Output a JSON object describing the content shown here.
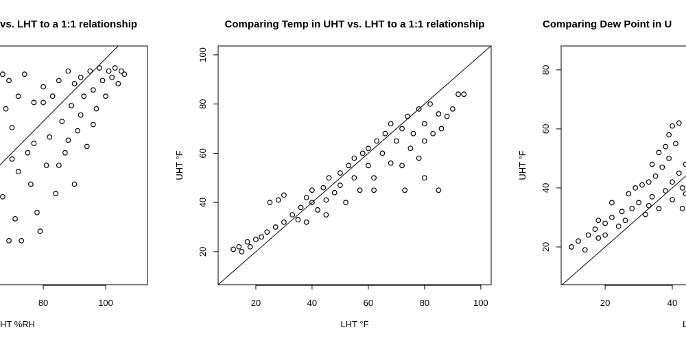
{
  "chart_data": [
    {
      "type": "scatter",
      "title": "vs. LHT to a 1:1 relationship",
      "xlabel": "HT %RH",
      "color": "#000000",
      "identity_line": true,
      "xlim": [
        25.9,
        113.4
      ],
      "ylim": [
        28,
        104
      ],
      "xticks": [
        80,
        100
      ],
      "x": [
        67,
        68,
        69,
        70,
        71,
        72,
        72,
        73,
        74,
        75,
        76,
        77,
        78,
        79,
        80,
        81,
        82,
        83,
        84,
        85,
        86,
        87,
        88,
        89,
        90,
        90,
        91,
        92,
        93,
        94,
        95,
        96,
        97,
        98,
        99,
        100,
        101,
        102,
        103,
        104,
        105,
        106,
        92,
        96,
        88,
        85,
        80,
        77,
        70,
        67,
        69
      ],
      "y": [
        56,
        84,
        93,
        78,
        49,
        88,
        64,
        42,
        95,
        70,
        60,
        86,
        51,
        45,
        91,
        66,
        75,
        88,
        57,
        93,
        80,
        70,
        96,
        85,
        60,
        92,
        77,
        94,
        88,
        72,
        96,
        90,
        84,
        97,
        93,
        88,
        96,
        94,
        97,
        92,
        96,
        95,
        82,
        79,
        74,
        66,
        86,
        73,
        68,
        95,
        42
      ]
    },
    {
      "type": "scatter",
      "title": "Comparing Temp in UHT vs. LHT to a 1:1 relationship",
      "xlabel": "LHT °F",
      "ylabel": "UHT °F",
      "color": "#000000",
      "identity_line": true,
      "xlim": [
        6.6,
        103.7
      ],
      "ylim": [
        6.6,
        103.6
      ],
      "xticks": [
        20,
        40,
        60,
        80,
        100
      ],
      "yticks": [
        20,
        40,
        60,
        80,
        100
      ],
      "x": [
        12,
        14,
        15,
        17,
        18,
        20,
        22,
        24,
        25,
        28,
        30,
        27,
        30,
        33,
        35,
        36,
        38,
        40,
        40,
        42,
        44,
        45,
        46,
        48,
        50,
        50,
        52,
        53,
        55,
        55,
        57,
        58,
        60,
        60,
        62,
        63,
        65,
        66,
        68,
        68,
        70,
        72,
        72,
        74,
        75,
        76,
        78,
        78,
        80,
        80,
        82,
        83,
        85,
        86,
        88,
        90,
        92,
        94,
        85,
        80,
        73,
        62,
        45,
        38
      ],
      "y": [
        21,
        22,
        20,
        24,
        22,
        25,
        26,
        28,
        40,
        41,
        43,
        30,
        32,
        35,
        33,
        38,
        42,
        40,
        45,
        37,
        46,
        41,
        50,
        44,
        52,
        47,
        40,
        55,
        50,
        58,
        45,
        60,
        62,
        55,
        50,
        65,
        60,
        68,
        56,
        72,
        65,
        70,
        55,
        75,
        62,
        68,
        78,
        58,
        72,
        65,
        80,
        68,
        76,
        70,
        75,
        78,
        84,
        84,
        45,
        50,
        45,
        45,
        35,
        32
      ]
    },
    {
      "type": "scatter",
      "title": "Comparing Dew Point in U",
      "xlabel": "L",
      "ylabel": "UHT °F",
      "color": "#000000",
      "identity_line": true,
      "xlim": [
        6.9,
        88.2
      ],
      "ylim": [
        7.2,
        88.1
      ],
      "xticks": [
        20,
        40
      ],
      "yticks": [
        20,
        40,
        60,
        80
      ],
      "x": [
        10,
        12,
        14,
        15,
        17,
        18,
        20,
        22,
        24,
        25,
        26,
        28,
        29,
        30,
        31,
        32,
        33,
        34,
        35,
        36,
        37,
        38,
        39,
        40,
        40,
        41,
        42,
        42,
        43,
        44,
        44,
        45,
        46,
        46,
        36,
        34,
        39,
        40,
        38,
        22,
        18,
        27,
        33,
        43,
        20
      ],
      "y": [
        20,
        22,
        19,
        24,
        26,
        23,
        28,
        30,
        27,
        32,
        29,
        33,
        40,
        35,
        41,
        31,
        42,
        37,
        44,
        33,
        47,
        39,
        50,
        42,
        36,
        55,
        45,
        62,
        40,
        48,
        38,
        46,
        50,
        43,
        52,
        48,
        58,
        61,
        54,
        35,
        29,
        38,
        34,
        33,
        24
      ]
    }
  ]
}
